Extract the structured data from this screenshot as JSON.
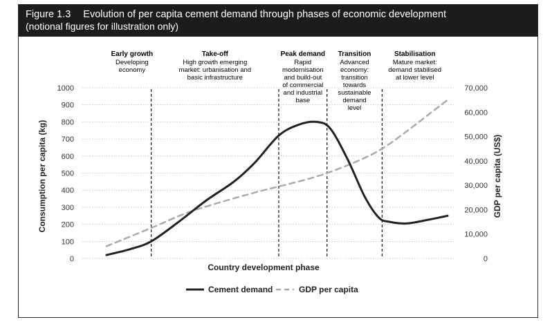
{
  "figure": {
    "label": "Figure 1.3",
    "title": "Evolution of per capita cement demand through phases of economic development",
    "subtitle": "(notional figures for illustration only)"
  },
  "chart_data": {
    "type": "line",
    "title": "Evolution of per capita cement demand through phases of economic development",
    "subtitle": "(notional figures for illustration only)",
    "xlabel": "Country development phase",
    "ylabel": "Consumption per capita (kg)",
    "y2label": "GDP per capita (US$)",
    "ylim": [
      0,
      1000
    ],
    "y2lim": [
      0,
      70000
    ],
    "yticks": [
      "0",
      "100",
      "200",
      "300",
      "400",
      "500",
      "600",
      "700",
      "800",
      "900",
      "1000"
    ],
    "y2ticks": [
      "0",
      "10,000",
      "20,000",
      "30,000",
      "40,000",
      "50,000",
      "60,000",
      "70,000"
    ],
    "grid": true,
    "legend_position": "bottom",
    "phases": [
      {
        "name": "Early growth",
        "description": [
          "Developing",
          "economy"
        ]
      },
      {
        "name": "Take-off",
        "description": [
          "High growth emerging",
          "market: urbanisation and",
          "basic infrastructure"
        ]
      },
      {
        "name": "Peak demand",
        "description": [
          "Rapid",
          "modernisation",
          "and build-out",
          "of commercial",
          "and industrial",
          "base"
        ]
      },
      {
        "name": "Transition",
        "description": [
          "Advanced",
          "economy:",
          "transition",
          "towards",
          "sustainable",
          "demand",
          "level"
        ]
      },
      {
        "name": "Stabilisation",
        "description": [
          "Mature market:",
          "demand stabilised",
          "at lower level"
        ]
      }
    ],
    "phase_boundaries": [
      1.0,
      2.85,
      3.55,
      4.35
    ],
    "x_domain": [
      0,
      5.4
    ],
    "series": [
      {
        "name": "Cement demand",
        "axis": "left",
        "color": "#222222",
        "style": "solid",
        "x": [
          0.35,
          0.7,
          1.0,
          1.4,
          1.8,
          2.2,
          2.5,
          2.85,
          3.15,
          3.4,
          3.6,
          3.85,
          4.1,
          4.3,
          4.45,
          4.7,
          5.0,
          5.3
        ],
        "values": [
          20,
          55,
          100,
          215,
          340,
          450,
          560,
          720,
          785,
          800,
          760,
          580,
          360,
          240,
          215,
          205,
          225,
          250
        ]
      },
      {
        "name": "GDP per capita",
        "axis": "right",
        "color": "#aaaaaa",
        "style": "dashed",
        "x": [
          0.35,
          1.0,
          1.5,
          2.0,
          2.5,
          2.85,
          3.2,
          3.55,
          4.0,
          4.35,
          4.7,
          5.0,
          5.3
        ],
        "values": [
          5000,
          12500,
          18500,
          23000,
          27000,
          29500,
          32000,
          35000,
          40000,
          45000,
          52000,
          58500,
          65000
        ]
      }
    ]
  }
}
